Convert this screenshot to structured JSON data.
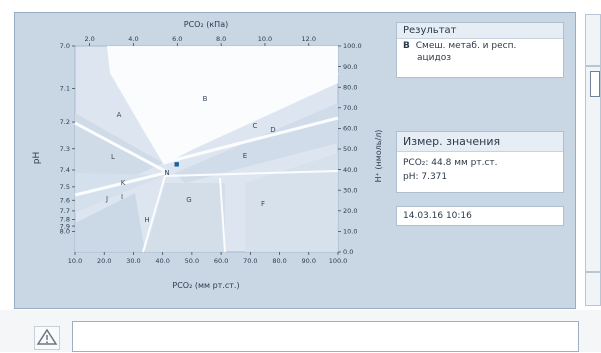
{
  "result_card": {
    "title": "Результат",
    "code": "B",
    "line1": "Смеш. метаб. и респ.",
    "line2": "ацидоз"
  },
  "measured_card": {
    "title": "Измер. значения",
    "pco2": "PCO₂: 44.8 мм рт.ст.",
    "ph": "pH: 7.371"
  },
  "timestamp": "14.03.16 10:16",
  "colors": {
    "panel_bg": "#c9d7e5",
    "plot_bg": "#dde6f0",
    "region_fill": "#cddbe8",
    "white_region": "#ffffff",
    "marker": "#1f5f9e",
    "text": "#2b3a4a"
  },
  "icons": {
    "warning": "warning-triangle-icon"
  },
  "chart_data": {
    "type": "scatter",
    "title_top": "PCO₂ (кПа)",
    "xlabel": "PCO₂ (мм рт.ст.)",
    "ylabel_left": "pH",
    "ylabel_right": "H⁺ (нмоль/л)",
    "xlim": [
      10,
      100
    ],
    "x_ticks": [
      "10.0",
      "20.0",
      "30.0",
      "40.0",
      "50.0",
      "60.0",
      "70.0",
      "80.0",
      "90.0",
      "100.0"
    ],
    "top_ticks": [
      "2.0",
      "4.0",
      "6.0",
      "8.0",
      "10.0",
      "12.0"
    ],
    "ph_ticks": [
      "7.0",
      "7.1",
      "7.2",
      "7.3",
      "7.4",
      "7.5",
      "7.6",
      "7.7",
      "7.8",
      "7.9",
      "8.0"
    ],
    "right_ticks": [
      "100.0",
      "90.0",
      "80.0",
      "70.0",
      "60.0",
      "50.0",
      "40.0",
      "30.0",
      "20.0",
      "10.0",
      "0.0"
    ],
    "region_labels": [
      "A",
      "B",
      "C",
      "D",
      "E",
      "F",
      "G",
      "H",
      "I",
      "J",
      "K",
      "L",
      "N"
    ],
    "point": {
      "pco2": 44.8,
      "ph": 7.371
    }
  }
}
